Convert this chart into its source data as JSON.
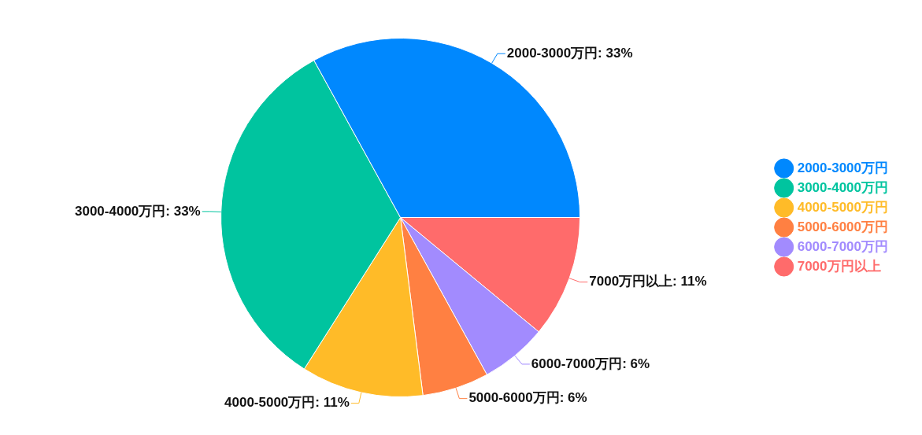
{
  "chart_data": {
    "type": "pie",
    "categories": [
      "2000-3000万円",
      "3000-4000万円",
      "4000-5000万円",
      "5000-6000万円",
      "6000-7000万円",
      "7000万円以上"
    ],
    "values": [
      33,
      33,
      11,
      6,
      6,
      11
    ],
    "colors": [
      "#0088fe",
      "#00c49f",
      "#ffbb28",
      "#ff8042",
      "#a28bfe",
      "#ff6b6b"
    ],
    "value_labels": [
      ": 33%",
      ": 33%",
      ": 11%",
      ": 6%",
      ": 6%",
      ": 11%"
    ],
    "legend": "right"
  }
}
